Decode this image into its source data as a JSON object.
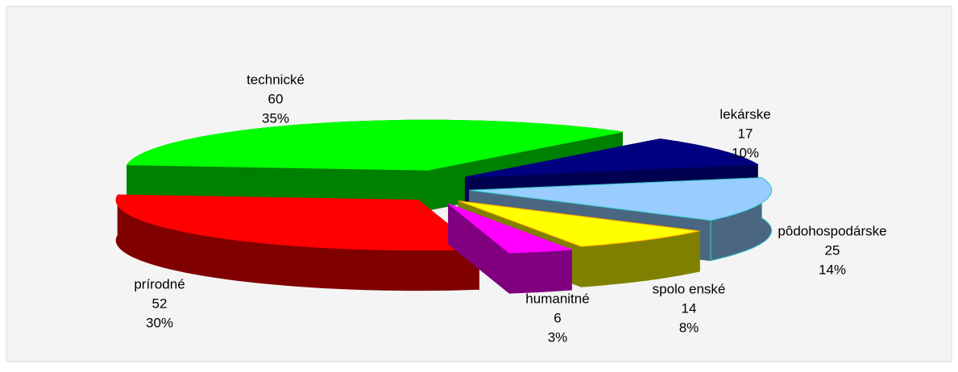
{
  "chart_data": {
    "type": "pie3d",
    "categories": [
      "technické",
      "lekárske",
      "pôdohospodárske",
      "spolo enské",
      "humanitné",
      "prírodné"
    ],
    "values": [
      60,
      17,
      25,
      14,
      6,
      52
    ],
    "percent_labels": [
      "35%",
      "10%",
      "14%",
      "8%",
      "3%",
      "30%"
    ],
    "colors": [
      "#00ff00",
      "#000080",
      "#99ccff",
      "#ffff00",
      "#ff00ff",
      "#ff0000"
    ],
    "side_colors": [
      "#008000",
      "#000050",
      "#4a6680",
      "#808000",
      "#800080",
      "#800000"
    ]
  }
}
